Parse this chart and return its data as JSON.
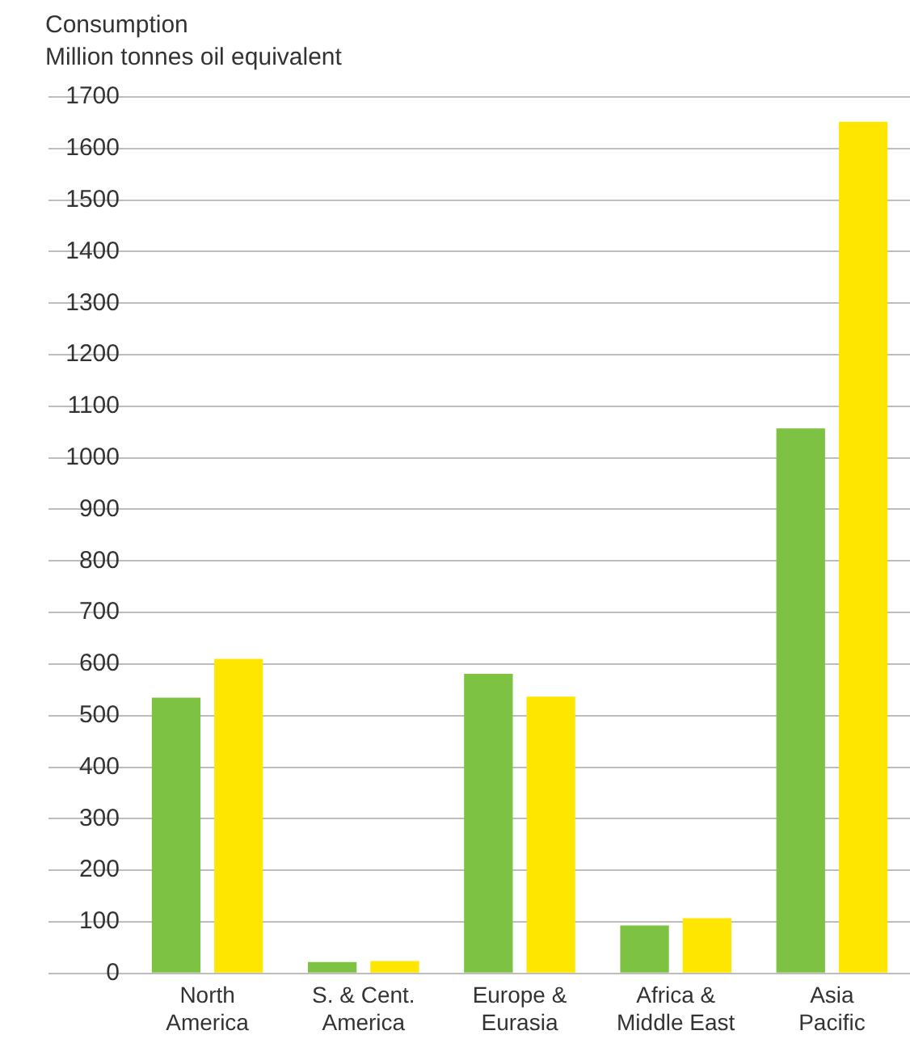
{
  "chart_data": {
    "type": "bar",
    "title": "Consumption",
    "subtitle": "Million tonnes oil equivalent",
    "categories": [
      "North\nAmerica",
      "S. & Cent.\nAmerica",
      "Europe &\nEurasia",
      "Africa &\nMiddle East",
      "Asia\nPacific"
    ],
    "series": [
      {
        "color": "#7dc242",
        "values": [
          535,
          22,
          581,
          93,
          1057
        ]
      },
      {
        "color": "#ffe600",
        "values": [
          610,
          24,
          537,
          107,
          1652
        ]
      }
    ],
    "ylim": [
      0,
      1700
    ],
    "yticks": [
      0,
      100,
      200,
      300,
      400,
      500,
      600,
      700,
      800,
      900,
      1000,
      1100,
      1200,
      1300,
      1400,
      1500,
      1600,
      1700
    ],
    "grid": "y",
    "legend": false
  }
}
